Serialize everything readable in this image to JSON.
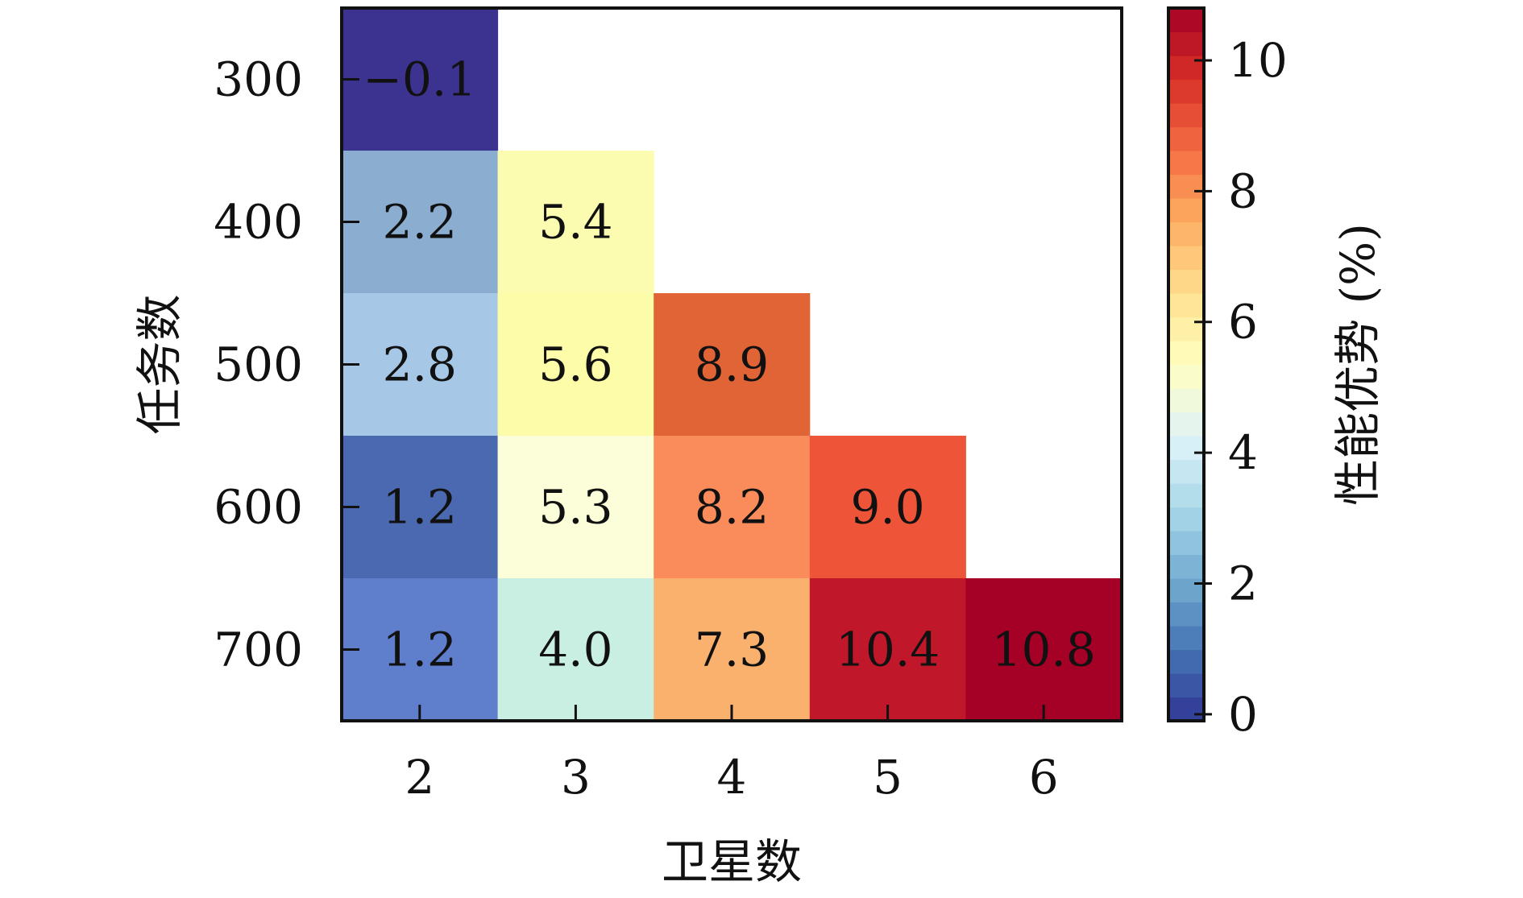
{
  "chart_data": {
    "type": "heatmap",
    "title": "",
    "xlabel": "卫星数",
    "ylabel": "任务数",
    "colorbar_label": "性能优势 (%)",
    "x_categories": [
      "2",
      "3",
      "4",
      "5",
      "6"
    ],
    "y_categories": [
      "300",
      "400",
      "500",
      "600",
      "700"
    ],
    "values": [
      [
        -0.1,
        null,
        null,
        null,
        null
      ],
      [
        2.2,
        5.4,
        null,
        null,
        null
      ],
      [
        2.8,
        5.6,
        8.9,
        null,
        null
      ],
      [
        1.2,
        5.3,
        8.2,
        9.0,
        null
      ],
      [
        1.2,
        4.0,
        7.3,
        10.4,
        10.8
      ]
    ],
    "labels": [
      [
        "−0.1",
        "",
        "",
        "",
        ""
      ],
      [
        "2.2",
        "5.4",
        "",
        "",
        ""
      ],
      [
        "2.8",
        "5.6",
        "8.9",
        "",
        ""
      ],
      [
        "1.2",
        "5.3",
        "8.2",
        "9.0",
        ""
      ],
      [
        "1.2",
        "4.0",
        "7.3",
        "10.4",
        "10.8"
      ]
    ],
    "colorbar_range": [
      -0.1,
      10.8
    ],
    "colorbar_ticks": [
      "0",
      "2",
      "4",
      "6",
      "8",
      "10"
    ],
    "colormap": "RdYlBu_r (discrete)",
    "colormap_stops": [
      "#313695",
      "#4575b4",
      "#74add1",
      "#abd9e9",
      "#e0f3f8",
      "#ffffbf",
      "#fee090",
      "#fdae61",
      "#f46d43",
      "#d73027",
      "#a50026"
    ],
    "cell_colors": [
      [
        "#3c3391",
        null,
        null,
        null,
        null
      ],
      [
        "#8aadd0",
        "#fbfcb0",
        null,
        null,
        null
      ],
      [
        "#a6c8e6",
        "#fdfca8",
        "#e06436",
        null,
        null
      ],
      [
        "#4b69b1",
        "#fbfed8",
        "#fa8c5c",
        "#ee5438",
        null
      ],
      [
        "#5f7fcd",
        "#c9efe3",
        "#fbb16e",
        "#c0172a",
        "#a50026"
      ]
    ],
    "grid": false,
    "legend": "colorbar right"
  }
}
